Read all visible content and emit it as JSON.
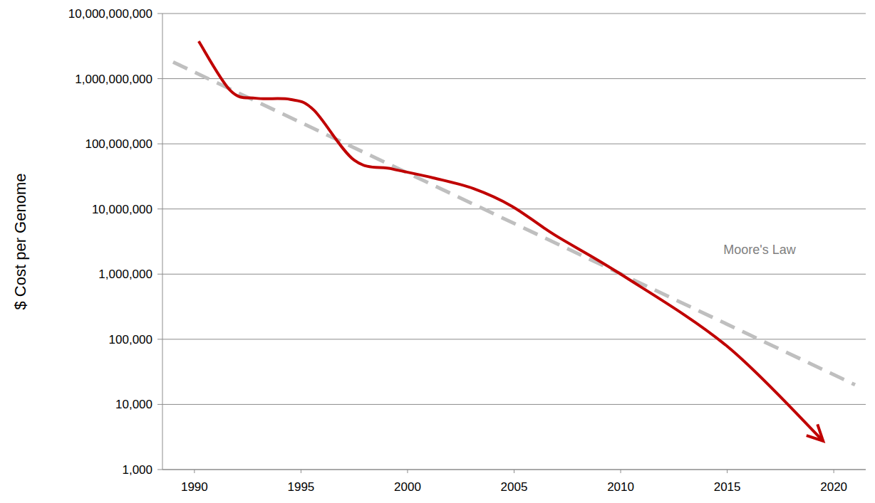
{
  "chart_data": {
    "type": "line",
    "y_label": "$ Cost per Genome",
    "log": "y",
    "grid": true,
    "xlim": [
      1988.5,
      2021.5
    ],
    "xticks": [
      1990,
      1995,
      2000,
      2005,
      2010,
      2015,
      2020
    ],
    "ylim": [
      1000,
      10000000000
    ],
    "yticks": [
      {
        "value": 1000,
        "label": "1,000"
      },
      {
        "value": 10000,
        "label": "10,000"
      },
      {
        "value": 100000,
        "label": "100,000"
      },
      {
        "value": 1000000,
        "label": "1,000,000"
      },
      {
        "value": 10000000,
        "label": "10,000,000"
      },
      {
        "value": 100000000,
        "label": "100,000,000"
      },
      {
        "value": 1000000000,
        "label": "1,000,000,000"
      },
      {
        "value": 10000000000,
        "label": "10,000,000,000"
      }
    ],
    "series": [
      {
        "color": "#c00000",
        "line_style": "solid",
        "x": [
          1990.2,
          1991.7,
          1992.9,
          1994.5,
          1995.6,
          1997.5,
          1999.3,
          2001.2,
          2003.1,
          2004.9,
          2006.9,
          2010,
          2015,
          2019.5
        ],
        "values": [
          3750000000,
          650000000,
          500000000,
          480000000,
          330000000,
          56000000,
          41000000,
          30000000,
          20500000,
          11000000,
          4000000,
          1000000,
          78000,
          2750
        ]
      },
      {
        "name": "Moore's Law",
        "color": "#bfbfbf",
        "line_style": "dashed",
        "x": [
          1989,
          2021
        ],
        "values": [
          1800000000,
          20000
        ]
      }
    ]
  }
}
